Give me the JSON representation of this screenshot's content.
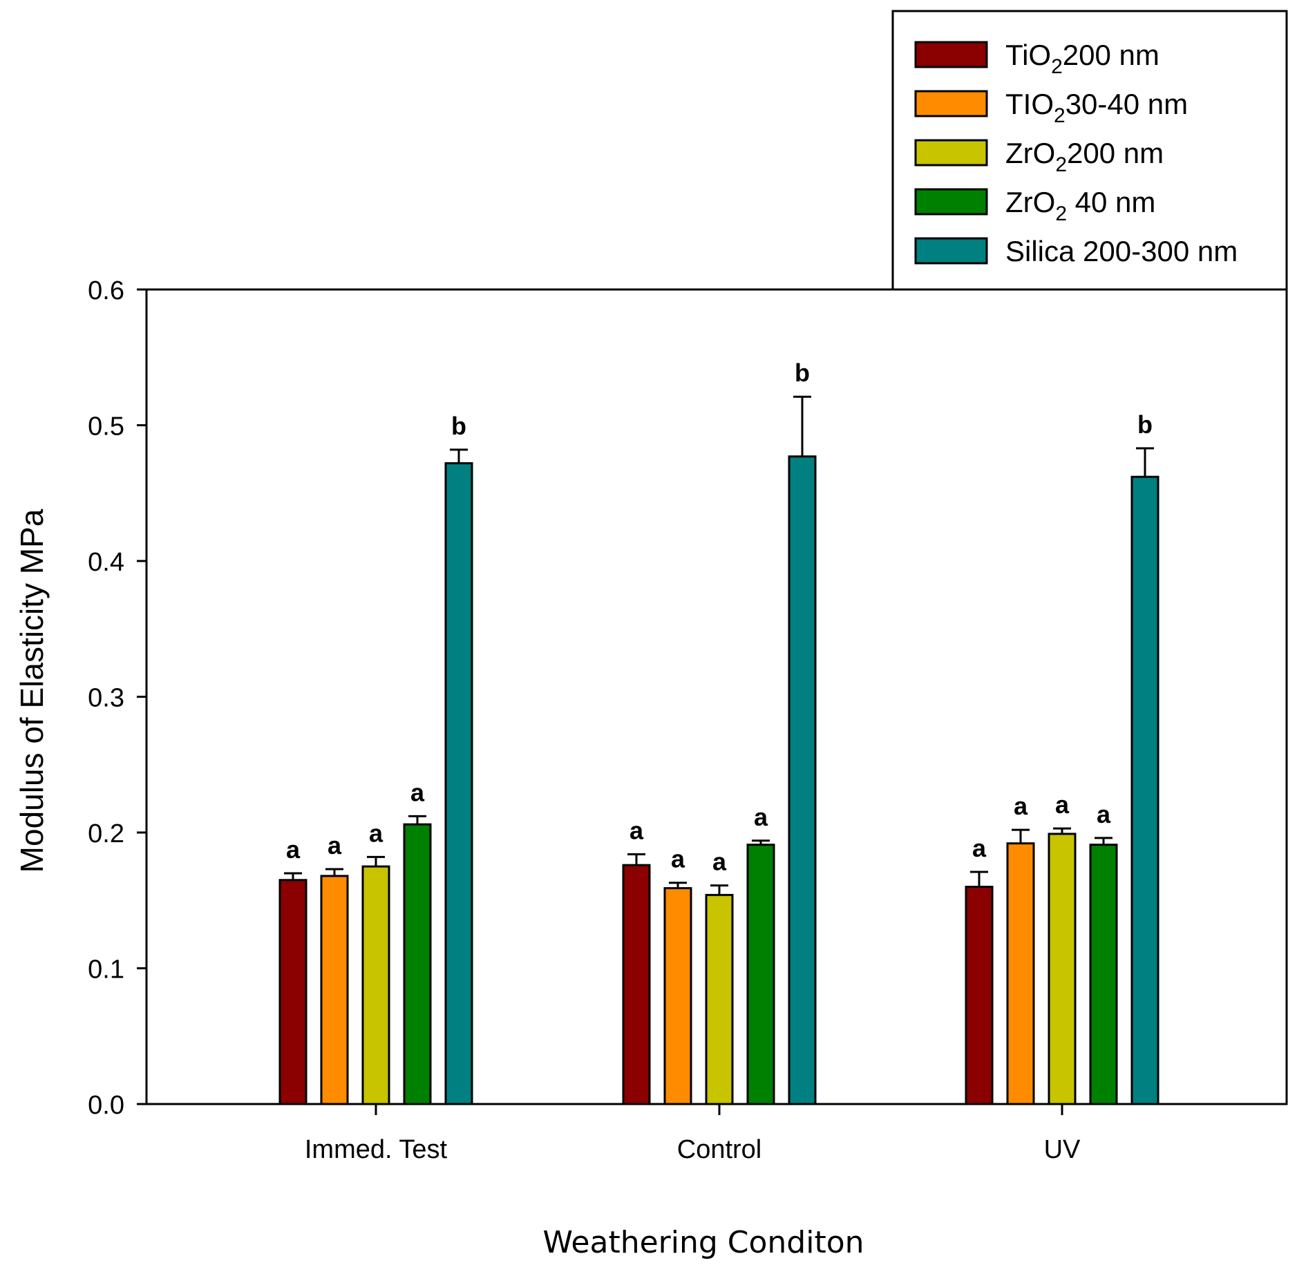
{
  "chart_data": {
    "type": "bar",
    "title": "",
    "xlabel": "Weathering Conditon",
    "ylabel": "Modulus of Elasticity MPa",
    "ylim": [
      0,
      0.6
    ],
    "yticks": [
      "0.0",
      "0.1",
      "0.2",
      "0.3",
      "0.4",
      "0.5",
      "0.6"
    ],
    "categories": [
      "Immed. Test",
      "Control",
      "UV"
    ],
    "legend_position": "top-right",
    "series": [
      {
        "name": "TiO2 200 nm",
        "label_main": "TiO",
        "label_sub": "2",
        "label_rest": "200 nm",
        "color": "#8b0000",
        "values": [
          0.165,
          0.176,
          0.16
        ],
        "errors": [
          0.005,
          0.008,
          0.011
        ],
        "sig": [
          "a",
          "a",
          "a"
        ]
      },
      {
        "name": "TIO2 30-40 nm",
        "label_main": "TIO",
        "label_sub": "2",
        "label_rest": "30-40 nm",
        "color": "#ff8c00",
        "values": [
          0.168,
          0.159,
          0.192
        ],
        "errors": [
          0.005,
          0.004,
          0.01
        ],
        "sig": [
          "a",
          "a",
          "a"
        ]
      },
      {
        "name": "ZrO2 200 nm",
        "label_main": "ZrO",
        "label_sub": "2",
        "label_rest": "200 nm",
        "color": "#c8c400",
        "values": [
          0.175,
          0.154,
          0.199
        ],
        "errors": [
          0.007,
          0.007,
          0.004
        ],
        "sig": [
          "a",
          "a",
          "a"
        ]
      },
      {
        "name": "ZrO2 40 nm",
        "label_main": "ZrO",
        "label_sub": "2",
        "label_rest": " 40 nm",
        "color": "#008000",
        "values": [
          0.206,
          0.191,
          0.191
        ],
        "errors": [
          0.006,
          0.003,
          0.005
        ],
        "sig": [
          "a",
          "a",
          "a"
        ]
      },
      {
        "name": "Silica 200-300 nm",
        "label_main": "Silica 200-300 nm",
        "label_sub": "",
        "label_rest": "",
        "color": "#008080",
        "values": [
          0.472,
          0.477,
          0.462
        ],
        "errors": [
          0.01,
          0.044,
          0.021
        ],
        "sig": [
          "b",
          "b",
          "b"
        ]
      }
    ]
  }
}
